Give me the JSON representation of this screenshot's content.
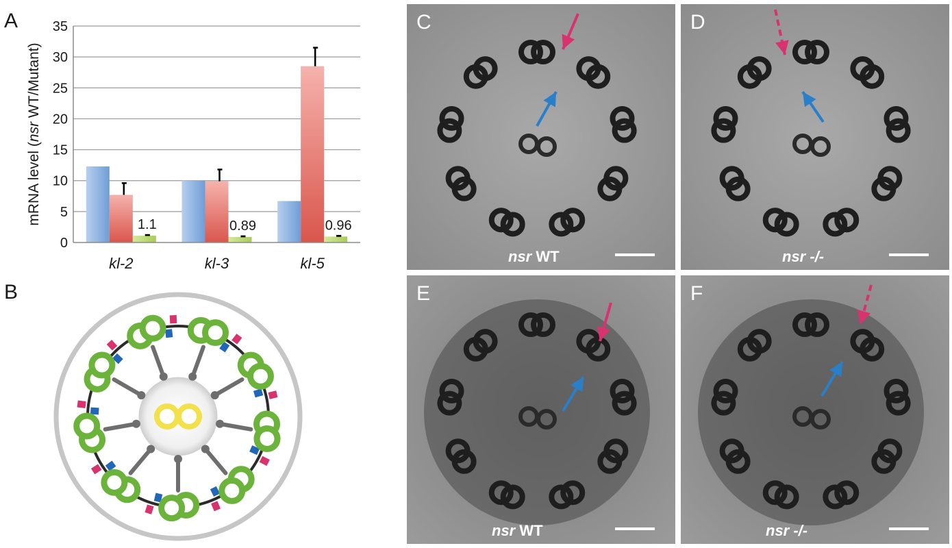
{
  "panels": {
    "a": "A",
    "b": "B",
    "c": "C",
    "d": "D",
    "e": "E",
    "f": "F"
  },
  "chart_data": {
    "type": "bar",
    "categories": [
      "kl-2",
      "kl-3",
      "kl-5"
    ],
    "ylabel_prefix": "mRNA level (",
    "ylabel_italic": "nsr",
    "ylabel_suffix": " WT/Mutant)",
    "ylim": [
      0,
      35
    ],
    "yticks": [
      "0",
      "5",
      "10",
      "15",
      "20",
      "25",
      "30",
      "35"
    ],
    "grid": true,
    "legend": "none",
    "series": [
      {
        "values": [
          12.3,
          10.0,
          6.7
        ],
        "error": [
          0,
          0,
          0
        ],
        "color": "#8fb4e0"
      },
      {
        "values": [
          7.7,
          9.9,
          28.5
        ],
        "error": [
          1.9,
          1.9,
          3.0
        ],
        "color": "#e2766e"
      },
      {
        "values": [
          1.1,
          0.89,
          0.96
        ],
        "error": [
          0.1,
          0.1,
          0.1
        ],
        "color": "#b9d870"
      }
    ],
    "data_labels": [
      "1.1",
      "0.89",
      "0.96"
    ]
  },
  "em": {
    "c_caption_italic": "nsr",
    "c_caption_rest": " WT",
    "d_caption_italic": "nsr -/-",
    "e_caption_italic": "nsr",
    "e_caption_rest": " WT",
    "f_caption_italic": "nsr -/-"
  },
  "colors": {
    "doublet": "#6bb33b",
    "central_pair": "#f2e14a",
    "outer_arm": "#d8336f",
    "inner_arm": "#2166b8",
    "spoke": "#6e6e6e",
    "arrow_outer": "#d8336f",
    "arrow_inner": "#2a7fc9"
  }
}
